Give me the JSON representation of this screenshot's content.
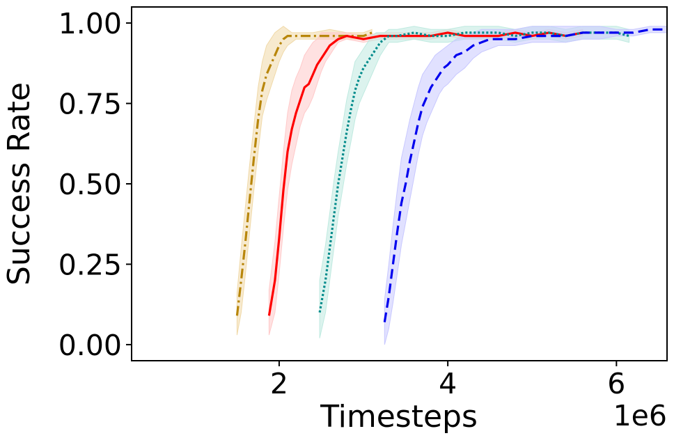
{
  "chart_data": {
    "type": "line",
    "title": "",
    "xlabel": "Timesteps",
    "ylabel": "Success Rate",
    "x_scale_label": "1e6",
    "xlim": [
      0.25,
      6.6
    ],
    "ylim": [
      -0.05,
      1.05
    ],
    "x_ticks": [
      2,
      4,
      6
    ],
    "x_tick_labels": [
      "2",
      "4",
      "6"
    ],
    "y_ticks": [
      0.0,
      0.25,
      0.5,
      0.75,
      1.0
    ],
    "y_tick_labels": [
      "0.00",
      "0.25",
      "0.50",
      "0.75",
      "1.00"
    ],
    "grid": false,
    "legend": "none",
    "series": [
      {
        "color": "#b8860b",
        "fill_color": "#f0d9a8",
        "dash": "dashdot",
        "x": [
          1.5,
          1.55,
          1.6,
          1.65,
          1.7,
          1.75,
          1.8,
          1.85,
          1.9,
          1.95,
          2.0,
          2.05,
          2.1,
          2.15,
          2.2,
          2.4,
          2.6,
          2.8,
          3.0,
          3.1
        ],
        "y": [
          0.09,
          0.2,
          0.32,
          0.45,
          0.58,
          0.7,
          0.79,
          0.84,
          0.87,
          0.9,
          0.93,
          0.95,
          0.96,
          0.96,
          0.96,
          0.96,
          0.96,
          0.96,
          0.96,
          0.97
        ],
        "lower": [
          0.03,
          0.1,
          0.22,
          0.35,
          0.48,
          0.6,
          0.71,
          0.76,
          0.8,
          0.84,
          0.88,
          0.91,
          0.93,
          0.94,
          0.95,
          0.95,
          0.95,
          0.95,
          0.95,
          0.96
        ],
        "upper": [
          0.16,
          0.3,
          0.43,
          0.56,
          0.68,
          0.8,
          0.88,
          0.93,
          0.95,
          0.97,
          0.98,
          0.99,
          0.98,
          0.97,
          0.97,
          0.97,
          0.98,
          0.97,
          0.97,
          0.98
        ]
      },
      {
        "color": "#ff0000",
        "fill_color": "#ffc9c9",
        "dash": "solid",
        "x": [
          1.88,
          1.95,
          2.0,
          2.05,
          2.1,
          2.15,
          2.2,
          2.25,
          2.3,
          2.35,
          2.4,
          2.45,
          2.5,
          2.55,
          2.6,
          2.65,
          2.7,
          2.8,
          3.0,
          3.2,
          3.4,
          3.6,
          3.8,
          4.0,
          4.2,
          4.4,
          4.6,
          4.8,
          5.0,
          5.2,
          5.4,
          5.6
        ],
        "y": [
          0.09,
          0.2,
          0.33,
          0.48,
          0.6,
          0.67,
          0.72,
          0.76,
          0.8,
          0.81,
          0.84,
          0.87,
          0.89,
          0.91,
          0.93,
          0.94,
          0.95,
          0.96,
          0.95,
          0.96,
          0.96,
          0.96,
          0.96,
          0.97,
          0.96,
          0.96,
          0.96,
          0.97,
          0.96,
          0.97,
          0.96,
          0.97
        ],
        "lower": [
          0.03,
          0.1,
          0.22,
          0.36,
          0.48,
          0.56,
          0.62,
          0.68,
          0.72,
          0.74,
          0.77,
          0.81,
          0.85,
          0.88,
          0.9,
          0.92,
          0.94,
          0.95,
          0.94,
          0.95,
          0.95,
          0.95,
          0.95,
          0.96,
          0.95,
          0.95,
          0.95,
          0.96,
          0.95,
          0.96,
          0.95,
          0.96
        ],
        "upper": [
          0.17,
          0.32,
          0.46,
          0.6,
          0.72,
          0.79,
          0.83,
          0.86,
          0.9,
          0.92,
          0.94,
          0.95,
          0.97,
          0.97,
          0.97,
          0.97,
          0.97,
          0.97,
          0.96,
          0.97,
          0.97,
          0.97,
          0.97,
          0.98,
          0.97,
          0.97,
          0.97,
          0.98,
          0.97,
          0.98,
          0.97,
          0.98
        ]
      },
      {
        "color": "#008b8b",
        "fill_color": "#bfeae0",
        "dash": "dotted",
        "x": [
          2.48,
          2.55,
          2.6,
          2.65,
          2.7,
          2.75,
          2.8,
          2.85,
          2.9,
          2.95,
          3.0,
          3.05,
          3.1,
          3.15,
          3.2,
          3.25,
          3.3,
          3.4,
          3.6,
          3.8,
          4.0,
          4.2,
          4.4,
          4.6,
          4.8,
          5.0,
          5.2,
          5.4,
          5.6,
          5.8,
          6.0,
          6.15
        ],
        "y": [
          0.1,
          0.2,
          0.3,
          0.4,
          0.5,
          0.58,
          0.66,
          0.73,
          0.79,
          0.83,
          0.86,
          0.88,
          0.9,
          0.92,
          0.94,
          0.95,
          0.96,
          0.96,
          0.97,
          0.96,
          0.96,
          0.97,
          0.97,
          0.97,
          0.96,
          0.97,
          0.97,
          0.96,
          0.97,
          0.97,
          0.97,
          0.96
        ],
        "lower": [
          0.02,
          0.1,
          0.2,
          0.3,
          0.4,
          0.48,
          0.56,
          0.63,
          0.7,
          0.75,
          0.78,
          0.81,
          0.84,
          0.87,
          0.9,
          0.92,
          0.94,
          0.94,
          0.95,
          0.94,
          0.94,
          0.95,
          0.95,
          0.95,
          0.94,
          0.95,
          0.95,
          0.94,
          0.95,
          0.95,
          0.95,
          0.94
        ],
        "upper": [
          0.2,
          0.31,
          0.41,
          0.51,
          0.6,
          0.68,
          0.76,
          0.82,
          0.88,
          0.9,
          0.92,
          0.94,
          0.96,
          0.97,
          0.97,
          0.97,
          0.98,
          0.98,
          0.99,
          0.98,
          0.98,
          0.99,
          0.99,
          0.99,
          0.98,
          0.99,
          0.99,
          0.98,
          0.99,
          0.99,
          0.99,
          0.98
        ]
      },
      {
        "color": "#0000ee",
        "fill_color": "#c8c8ff",
        "dash": "dashed",
        "x": [
          3.25,
          3.3,
          3.35,
          3.4,
          3.45,
          3.5,
          3.55,
          3.6,
          3.65,
          3.7,
          3.75,
          3.8,
          3.85,
          3.9,
          3.95,
          4.0,
          4.1,
          4.2,
          4.3,
          4.4,
          4.5,
          4.6,
          4.8,
          5.0,
          5.2,
          5.4,
          5.6,
          5.8,
          6.0,
          6.2,
          6.4,
          6.6
        ],
        "y": [
          0.07,
          0.15,
          0.25,
          0.35,
          0.44,
          0.5,
          0.57,
          0.63,
          0.69,
          0.74,
          0.77,
          0.8,
          0.82,
          0.84,
          0.86,
          0.87,
          0.9,
          0.91,
          0.93,
          0.94,
          0.95,
          0.95,
          0.95,
          0.96,
          0.96,
          0.96,
          0.97,
          0.97,
          0.97,
          0.97,
          0.98,
          0.98
        ],
        "lower": [
          0.0,
          0.05,
          0.13,
          0.22,
          0.31,
          0.38,
          0.45,
          0.52,
          0.59,
          0.65,
          0.69,
          0.72,
          0.75,
          0.78,
          0.8,
          0.81,
          0.84,
          0.86,
          0.89,
          0.91,
          0.92,
          0.93,
          0.93,
          0.94,
          0.94,
          0.94,
          0.95,
          0.95,
          0.96,
          0.96,
          0.97,
          0.97
        ],
        "upper": [
          0.14,
          0.25,
          0.37,
          0.48,
          0.58,
          0.64,
          0.7,
          0.75,
          0.8,
          0.84,
          0.86,
          0.88,
          0.9,
          0.91,
          0.92,
          0.93,
          0.95,
          0.96,
          0.97,
          0.98,
          0.98,
          0.98,
          0.98,
          0.99,
          0.99,
          0.99,
          0.99,
          0.99,
          0.98,
          0.98,
          0.99,
          0.99
        ]
      }
    ]
  }
}
